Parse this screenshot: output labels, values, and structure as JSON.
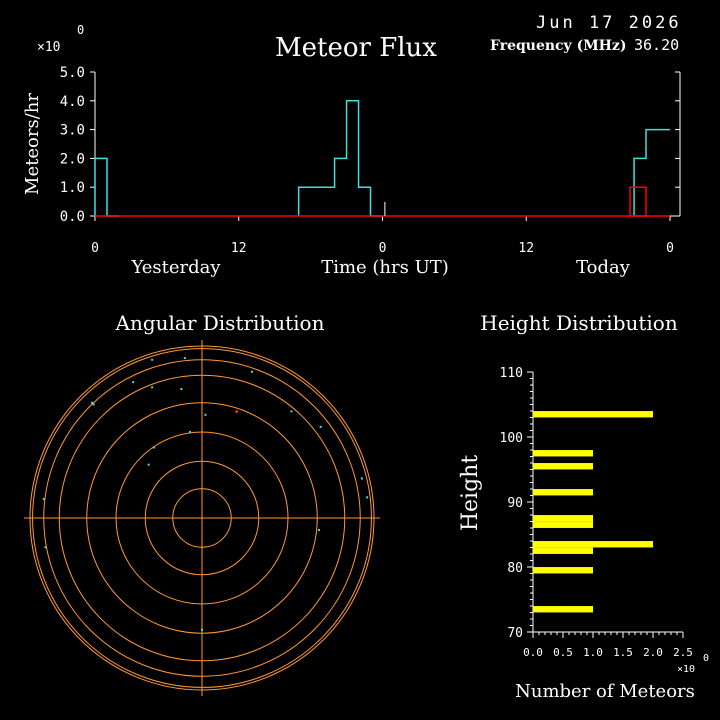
{
  "header": {
    "date": "Jun 17 2026",
    "title": "Meteor Flux",
    "frequency_label": "Frequency (MHz)",
    "frequency_value": "36.20",
    "exponent_base": "×10",
    "exponent_power": "0"
  },
  "colors": {
    "background": "#000000",
    "text": "#ffffff",
    "axis": "#ffffff",
    "series_yesterday": "#40e0e0",
    "series_today": "#40e0e0",
    "series_current": "#ff0000",
    "rings": "#ff9933",
    "height_bars": "#ffff00",
    "points": "#40e0e0",
    "points_alt": "#ff3333"
  },
  "chart_data": [
    {
      "type": "line",
      "title": "Meteor Flux",
      "ylabel": "Meteors/hr",
      "xlabel": "Time (hrs UT)",
      "ylim": [
        0,
        5.0
      ],
      "y_ticks": [
        "0.0",
        "1.0",
        "2.0",
        "3.0",
        "4.0",
        "5.0"
      ],
      "x_tick_labels": [
        "0",
        "12",
        "0",
        "12",
        "0"
      ],
      "x_section_labels": [
        "Yesterday",
        "Today"
      ],
      "series": [
        {
          "x": [
            0,
            1,
            2,
            3,
            4,
            5,
            6,
            7,
            8,
            9,
            10,
            11,
            12,
            13,
            14,
            15,
            16,
            17,
            18,
            19,
            20,
            21,
            22,
            23,
            24,
            25,
            26,
            27,
            28,
            29,
            30,
            31,
            32,
            33,
            34,
            35,
            36,
            37,
            38,
            39,
            40,
            41,
            42,
            43,
            44,
            45,
            46,
            47
          ],
          "values": [
            2,
            0,
            0,
            0,
            0,
            0,
            0,
            0,
            0,
            0,
            0,
            0,
            0,
            0,
            0,
            0,
            0,
            1,
            1,
            1,
            2,
            4,
            1,
            0,
            0,
            0,
            0,
            0,
            0,
            0,
            0,
            0,
            0,
            0,
            0,
            0,
            0,
            0,
            0,
            0,
            0,
            0,
            0,
            0,
            0,
            2,
            3,
            3
          ]
        }
      ],
      "current_hour_box": {
        "x": 45,
        "value": 1.0
      }
    },
    {
      "type": "scatter",
      "title": "Angular Distribution",
      "points_cyan": [
        [
          -0.29,
          0.92
        ],
        [
          -0.1,
          0.93
        ],
        [
          0.29,
          0.85
        ],
        [
          -0.4,
          0.79
        ],
        [
          -0.29,
          0.76
        ],
        [
          -0.12,
          0.75
        ],
        [
          -0.63,
          0.66
        ],
        [
          -0.64,
          0.67
        ],
        [
          0.52,
          0.62
        ],
        [
          0.69,
          0.53
        ],
        [
          0.02,
          0.6
        ],
        [
          -0.07,
          0.5
        ],
        [
          -0.28,
          0.41
        ],
        [
          -0.31,
          0.31
        ],
        [
          0.93,
          0.23
        ],
        [
          -0.92,
          0.11
        ],
        [
          0.96,
          0.12
        ],
        [
          0.68,
          -0.07
        ],
        [
          -0.91,
          -0.17
        ],
        [
          0.0,
          -0.65
        ]
      ],
      "points_red": [
        [
          0.2,
          0.62
        ]
      ]
    },
    {
      "type": "bar",
      "title": "Height Distribution",
      "ylabel": "Height",
      "xlabel": "Number of Meteors",
      "ylim": [
        70,
        110
      ],
      "xlim": [
        0,
        2.5
      ],
      "x_ticks": [
        "0.0",
        "0.5",
        "1.0",
        "1.5",
        "2.0",
        "2.5"
      ],
      "y_ticks": [
        "70",
        "80",
        "90",
        "100",
        "110"
      ],
      "bars": [
        {
          "height": 103.5,
          "value": 2
        },
        {
          "height": 97.5,
          "value": 1
        },
        {
          "height": 95.5,
          "value": 1
        },
        {
          "height": 91.5,
          "value": 1
        },
        {
          "height": 87.5,
          "value": 1
        },
        {
          "height": 86.5,
          "value": 1
        },
        {
          "height": 83.5,
          "value": 2
        },
        {
          "height": 82.5,
          "value": 1
        },
        {
          "height": 79.5,
          "value": 1
        },
        {
          "height": 73.5,
          "value": 1
        }
      ]
    }
  ]
}
